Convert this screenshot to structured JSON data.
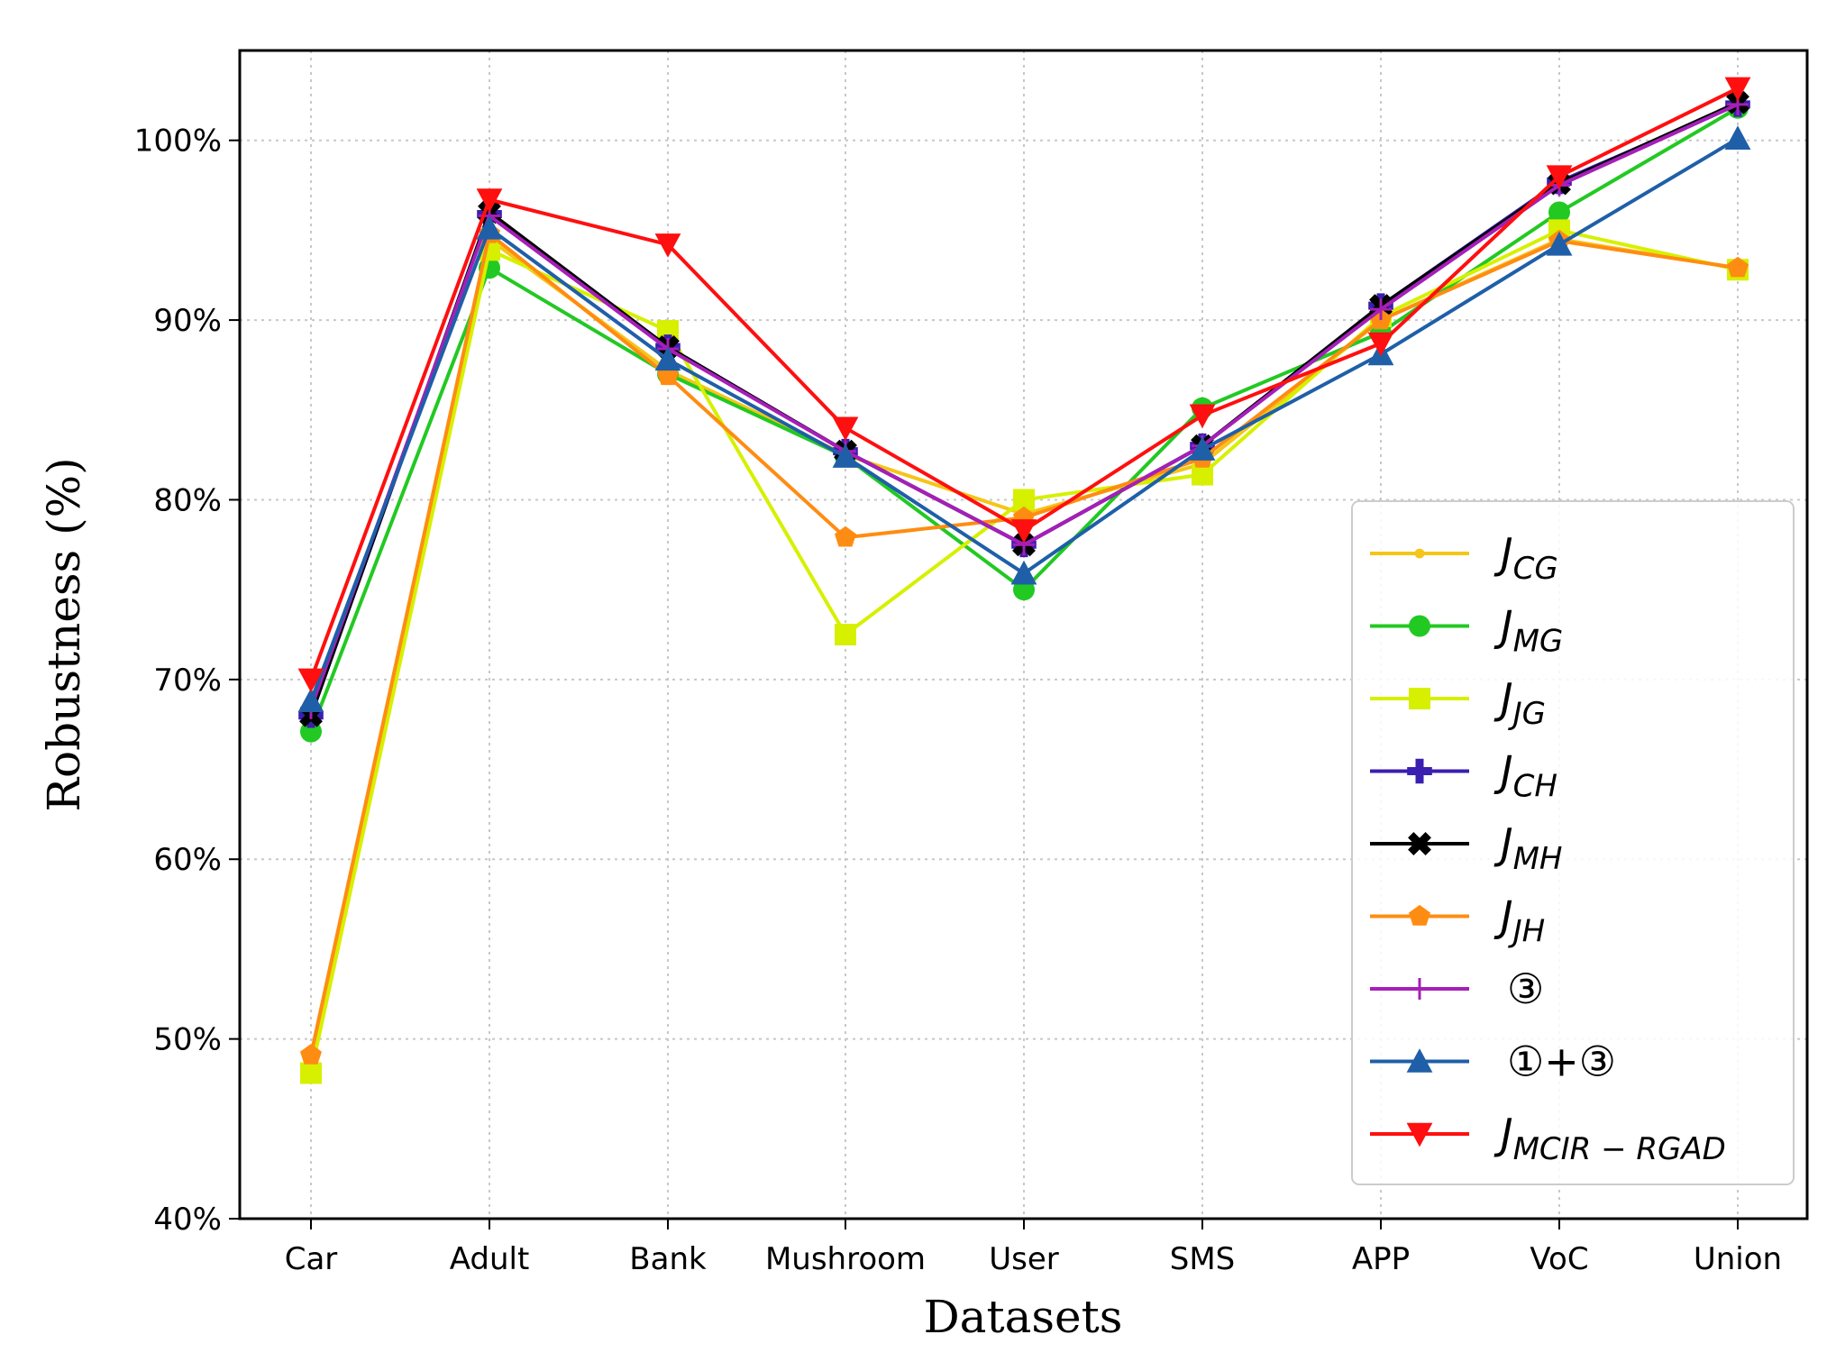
{
  "chart_data": {
    "type": "line",
    "title": "",
    "xlabel": "Datasets",
    "ylabel": "Robustness (%)",
    "ylim": [
      40,
      105
    ],
    "yticks": [
      40,
      50,
      60,
      70,
      80,
      90,
      100
    ],
    "ytick_labels": [
      "40%",
      "50%",
      "60%",
      "70%",
      "80%",
      "90%",
      "100%"
    ],
    "grid": true,
    "legend_position": "lower-right",
    "categories": [
      "Car",
      "Adult",
      "Bank",
      "Mushroom",
      "User",
      "SMS",
      "APP",
      "VoC",
      "Union"
    ],
    "series": [
      {
        "name": "J",
        "sub": "CG",
        "color": "#f5c518",
        "marker": "point",
        "values": [
          49.0,
          94.5,
          87.2,
          82.5,
          79.2,
          82.0,
          90.0,
          94.5,
          92.9
        ]
      },
      {
        "name": "J",
        "sub": "MG",
        "color": "#22c922",
        "marker": "circle",
        "values": [
          67.1,
          92.9,
          87.0,
          82.4,
          75.0,
          85.1,
          89.3,
          96.0,
          101.8
        ]
      },
      {
        "name": "J",
        "sub": "JG",
        "color": "#d6f000",
        "marker": "square",
        "values": [
          48.1,
          93.9,
          89.4,
          72.5,
          80.0,
          81.4,
          90.2,
          95.0,
          92.8
        ]
      },
      {
        "name": "J",
        "sub": "CH",
        "color": "#3a1fb0",
        "marker": "plus",
        "values": [
          68.0,
          95.9,
          88.5,
          82.7,
          77.5,
          83.0,
          90.8,
          97.7,
          102.0
        ]
      },
      {
        "name": "J",
        "sub": "MH",
        "color": "#000000",
        "marker": "xfilled",
        "values": [
          68.0,
          96.0,
          88.5,
          82.7,
          77.5,
          83.0,
          90.8,
          97.6,
          102.1
        ]
      },
      {
        "name": "J",
        "sub": "JH",
        "color": "#ff8c12",
        "marker": "pentagon",
        "values": [
          49.1,
          94.8,
          86.9,
          77.9,
          79.0,
          82.3,
          90.0,
          94.4,
          92.9
        ]
      },
      {
        "name": "③",
        "sub": "",
        "color": "#a51fb8",
        "marker": "thinplus",
        "values": [
          68.4,
          95.8,
          88.4,
          82.7,
          77.5,
          83.0,
          90.6,
          97.5,
          102.0
        ]
      },
      {
        "name": "①+③",
        "sub": "",
        "color": "#1f5fa8",
        "marker": "triangle-up",
        "values": [
          68.8,
          95.1,
          87.8,
          82.4,
          75.9,
          82.8,
          88.1,
          94.2,
          100.1
        ]
      },
      {
        "name": "J",
        "sub": "MCIR − RGAD",
        "color": "#ff0f0f",
        "marker": "triangle-down",
        "values": [
          70.0,
          96.7,
          94.2,
          84.0,
          78.3,
          84.7,
          88.7,
          98.0,
          102.9
        ]
      }
    ]
  }
}
